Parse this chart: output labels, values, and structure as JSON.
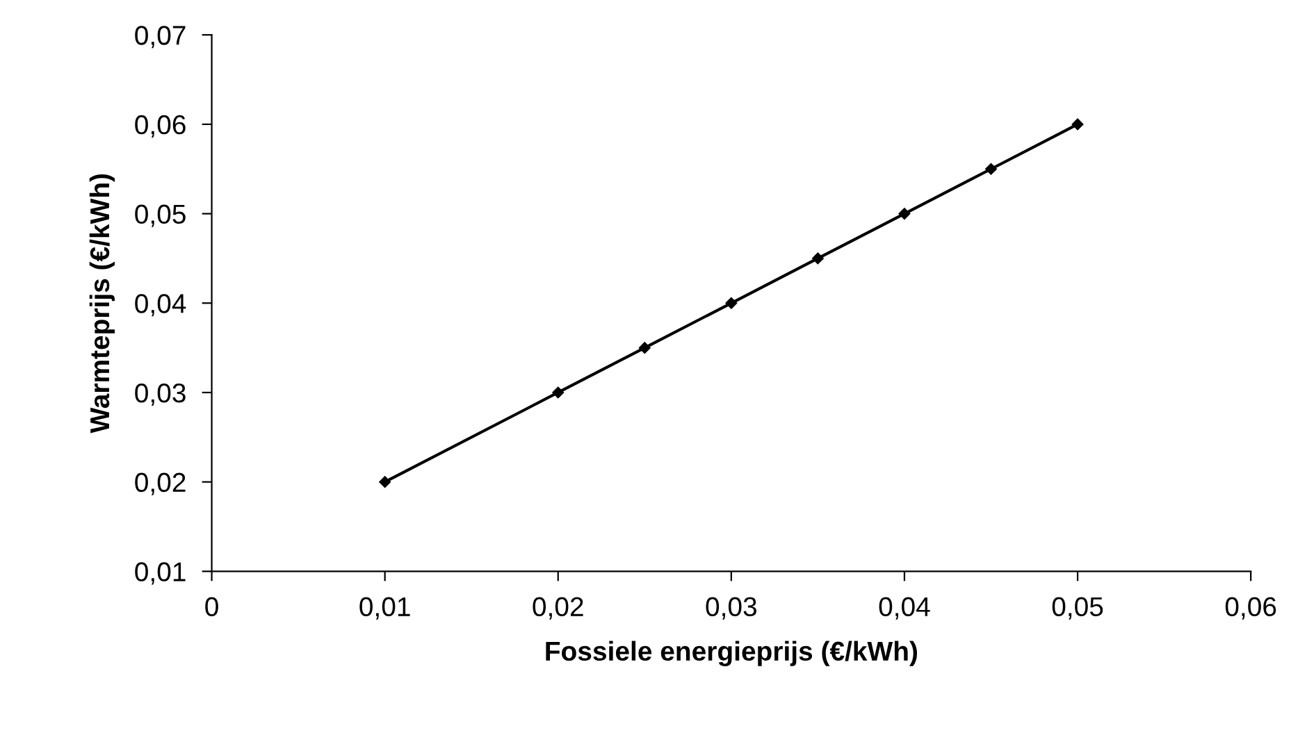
{
  "chart_data": {
    "type": "line",
    "xlabel": "Fossiele energieprijs (€/kWh)",
    "ylabel": "Warmteprijs (€/kWh)",
    "x": [
      0.01,
      0.02,
      0.025,
      0.03,
      0.035,
      0.04,
      0.045,
      0.05
    ],
    "series": [
      {
        "color": "#000000",
        "values": [
          0.02,
          0.03,
          0.035,
          0.04,
          0.045,
          0.05,
          0.055,
          0.06
        ]
      }
    ],
    "marker": "diamond",
    "line_style": "solid",
    "grid": false,
    "legend": false,
    "xlim": [
      0,
      0.06
    ],
    "xticks": [
      0,
      {
        "value": 0.01,
        "label": "0,01"
      },
      {
        "value": 0.02,
        "label": "0,02"
      },
      {
        "value": 0.03,
        "label": "0,03"
      },
      {
        "value": 0.04,
        "label": "0,04"
      },
      {
        "value": 0.05,
        "label": "0,05"
      },
      {
        "value": 0.06,
        "label": "0,06"
      }
    ],
    "ylim": [
      0.01,
      0.07
    ],
    "yticks": [
      {
        "value": 0.01,
        "label": "0,01"
      },
      {
        "value": 0.02,
        "label": "0,02"
      },
      {
        "value": 0.03,
        "label": "0,03"
      },
      {
        "value": 0.04,
        "label": "0,04"
      },
      {
        "value": 0.05,
        "label": "0,05"
      },
      {
        "value": 0.06,
        "label": "0,06"
      },
      {
        "value": 0.07,
        "label": "0,07"
      }
    ]
  }
}
